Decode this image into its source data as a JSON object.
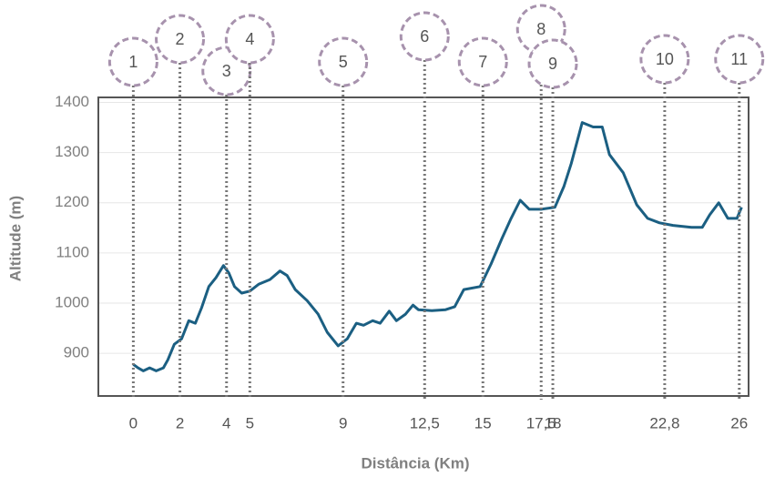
{
  "chart_data": {
    "type": "line",
    "x_label": "Distância (Km)",
    "y_label": "Altitude (m)",
    "xlim": [
      -1.5,
      26.4
    ],
    "ylim": [
      815,
      1410
    ],
    "xticks": [
      0,
      2,
      4,
      5,
      9,
      {
        "value": 12.5,
        "label": "12,5"
      },
      15,
      {
        "value": 17.5,
        "label": "17,5"
      },
      18,
      {
        "value": 22.8,
        "label": "22,8"
      },
      26
    ],
    "yticks": [
      900,
      1000,
      1100,
      1200,
      1300,
      1400
    ],
    "markers": [
      "1",
      "2",
      "3",
      "4",
      "5",
      "6",
      "7",
      "8",
      "9",
      "10",
      "11"
    ],
    "grid": true,
    "series": [
      {
        "color": "#1b5f82",
        "x": [
          0,
          0.2,
          0.43,
          0.7,
          0.98,
          1.29,
          1.48,
          1.76,
          2.07,
          2.38,
          2.66,
          2.93,
          3.24,
          3.55,
          3.87,
          4.1,
          4.34,
          4.65,
          5.0,
          5.39,
          5.86,
          6.29,
          6.6,
          6.95,
          7.46,
          7.93,
          8.32,
          8.79,
          9.18,
          9.57,
          9.88,
          10.27,
          10.59,
          10.98,
          11.29,
          11.68,
          12.0,
          12.23,
          12.81,
          13.4,
          13.79,
          14.18,
          14.88,
          15.35,
          15.82,
          16.21,
          16.6,
          16.99,
          17.5,
          18.09,
          18.48,
          18.79,
          19.26,
          19.73,
          20.12,
          20.43,
          21.02,
          21.6,
          22.07,
          22.58,
          23.16,
          23.95,
          24.41,
          24.73,
          25.12,
          25.51,
          25.9,
          26.1
        ],
        "values": [
          878,
          871,
          865,
          871,
          865,
          871,
          887,
          918,
          929,
          965,
          960,
          991,
          1033,
          1051,
          1075,
          1060,
          1033,
          1020,
          1024,
          1038,
          1047,
          1064,
          1055,
          1027,
          1005,
          978,
          942,
          915,
          929,
          960,
          956,
          965,
          960,
          984,
          965,
          978,
          996,
          987,
          985,
          987,
          993,
          1027,
          1033,
          1078,
          1129,
          1169,
          1205,
          1187,
          1187,
          1191,
          1233,
          1278,
          1360,
          1351,
          1351,
          1296,
          1260,
          1196,
          1169,
          1160,
          1155,
          1151,
          1151,
          1176,
          1200,
          1169,
          1169,
          1191
        ]
      }
    ]
  }
}
